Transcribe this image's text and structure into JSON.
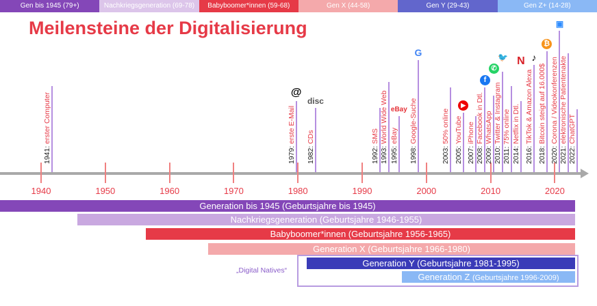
{
  "tabs": [
    {
      "label": "Gen bis 1945 (79+)",
      "color": "#8447b8"
    },
    {
      "label": "Nachkriegsgeneration (69-78)",
      "color": "#dcc5ea"
    },
    {
      "label": "Babyboomer*innen (59-68)",
      "color": "#e63a47"
    },
    {
      "label": "Gen X (44-58)",
      "color": "#f4a9ab"
    },
    {
      "label": "Gen Y (29-43)",
      "color": "#6266cc"
    },
    {
      "label": "Gen Z+ (14-28)",
      "color": "#8ab8f5"
    }
  ],
  "title": "Meilensteine der Digitalisierung",
  "decades": [
    "1940",
    "1950",
    "1960",
    "1970",
    "1980",
    "1990",
    "2000",
    "2010",
    "2020"
  ],
  "events": [
    {
      "year": "1941",
      "text": "erster Computer",
      "icon": ""
    },
    {
      "year": "1979",
      "text": "erste E-Mail",
      "icon": "at-icon"
    },
    {
      "year": "1982",
      "text": "CDs",
      "icon": "compact-disc-icon"
    },
    {
      "year": "1992",
      "text": "SMS",
      "icon": ""
    },
    {
      "year": "1993",
      "text": "World Wide Web",
      "icon": ""
    },
    {
      "year": "1995",
      "text": "eBay",
      "icon": "ebay-icon"
    },
    {
      "year": "1998",
      "text": "Google-Suche",
      "icon": "google-icon"
    },
    {
      "year": "2003",
      "text": "50% online",
      "icon": ""
    },
    {
      "year": "2005",
      "text": "YouTube",
      "icon": "youtube-icon"
    },
    {
      "year": "2007",
      "text": "iPhone",
      "icon": ""
    },
    {
      "year": "2008",
      "text": "Facebook in Dtl.",
      "icon": "facebook-icon"
    },
    {
      "year": "2009",
      "text": "WhatsApp",
      "icon": "whatsapp-icon"
    },
    {
      "year": "2010",
      "text": "Twitter & Instagram",
      "icon": "twitter-instagram-icon"
    },
    {
      "year": "2011",
      "text": "75% online",
      "icon": ""
    },
    {
      "year": "2014",
      "text": "Netflix in Dtl.",
      "icon": "netflix-icon"
    },
    {
      "year": "2016",
      "text": "TikTok & Amazon Alexa",
      "icon": "tiktok-icon"
    },
    {
      "year": "2018",
      "text": "Bitcoin steigt auf 16.000$",
      "icon": "bitcoin-icon"
    },
    {
      "year": "2020",
      "text": "Corona / Videokonferenzen",
      "icon": "zoom-teams-icon"
    },
    {
      "year": "2021",
      "text": "elektronische Patientenakte",
      "icon": ""
    },
    {
      "year": "2022",
      "text": "ChatGPT",
      "icon": ""
    }
  ],
  "generations": [
    {
      "label": "Generation bis 1945 (Geburtsjahre bis 1945)",
      "color": "#8447b8"
    },
    {
      "label": "Nachkriegsgeneration (Geburtsjahre 1946-1955)",
      "color": "#c9a8e0"
    },
    {
      "label": "Babyboomer*innen (Geburtsjahre 1956-1965)",
      "color": "#e63a47"
    },
    {
      "label": "Generation X (Geburtsjahre 1966-1980)",
      "color": "#f4a9ab"
    },
    {
      "label": "Generation Y (Geburtsjahre 1981-1995)",
      "color": "#3a3bb8"
    },
    {
      "label": "Generation Z",
      "sub": "(Geburtsjahre 1996-2009)",
      "color": "#8ab8f5"
    }
  ],
  "digital_natives": "„Digital Natives“"
}
